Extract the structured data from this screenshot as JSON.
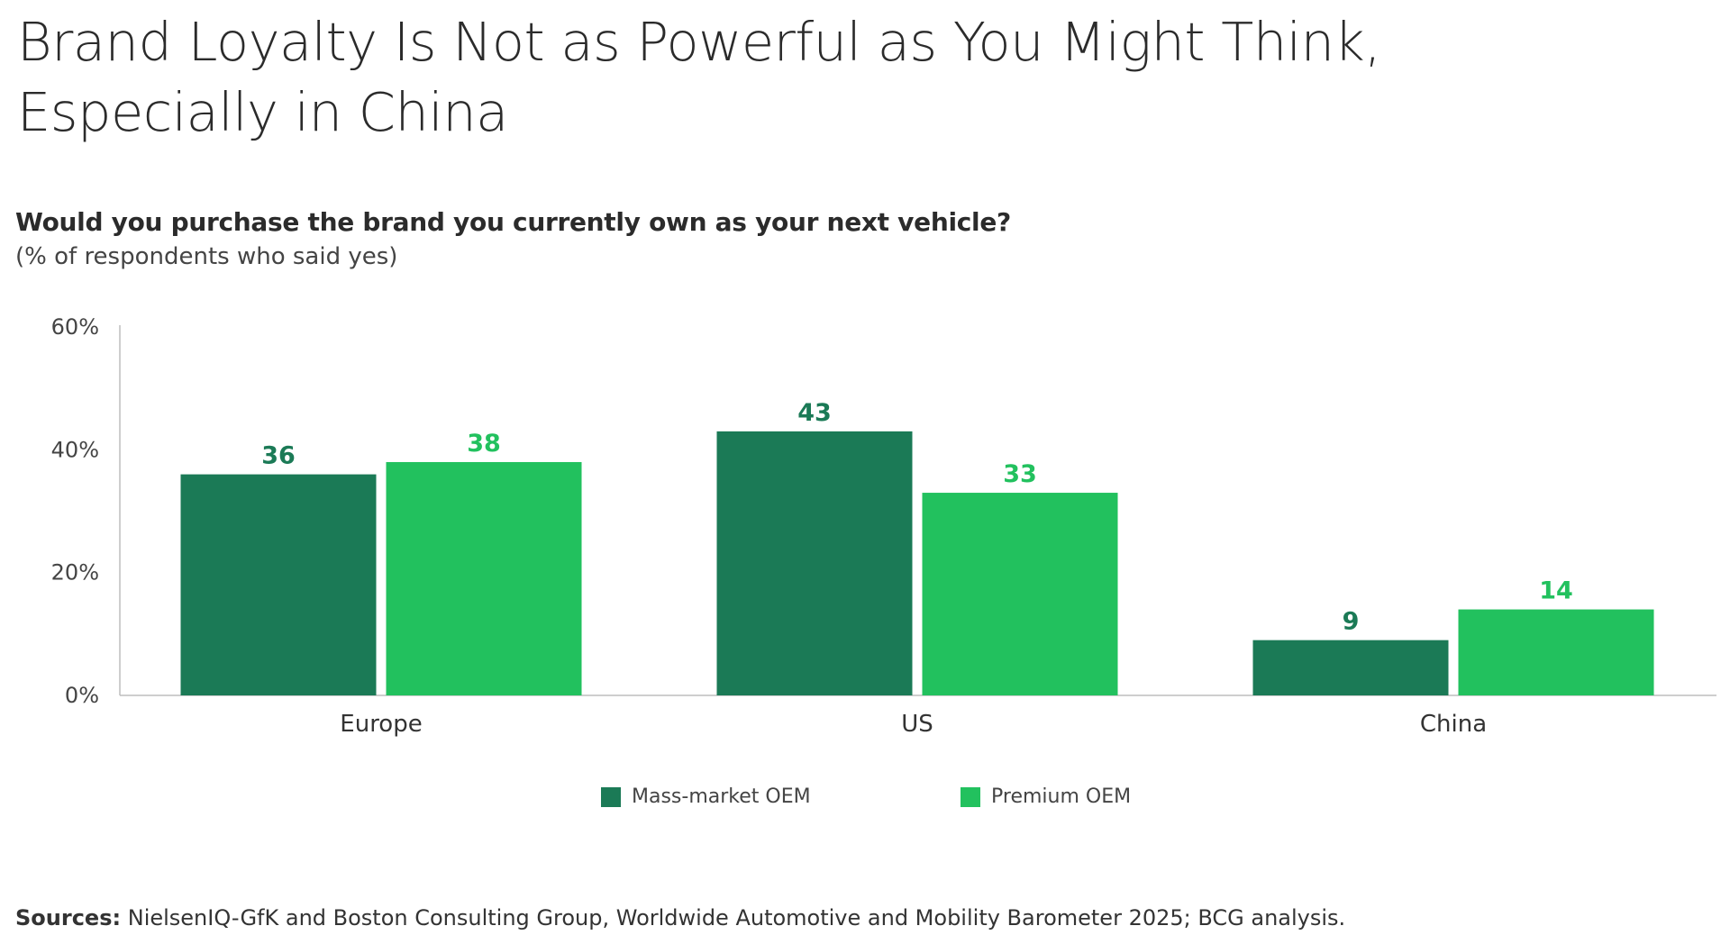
{
  "header": {
    "title_line1": "Brand Loyalty Is Not as Powerful as You Might Think,",
    "title_line2": "Especially in China"
  },
  "chart_data": {
    "type": "bar",
    "title": "Would you purchase the brand you currently own as your next vehicle?",
    "subtitle": "(% of respondents who said yes)",
    "categories": [
      "Europe",
      "US",
      "China"
    ],
    "series": [
      {
        "name": "Mass-market OEM",
        "color": "#1b7a56",
        "values": [
          36,
          43,
          9
        ]
      },
      {
        "name": "Premium OEM",
        "color": "#22c15e",
        "values": [
          38,
          33,
          14
        ]
      }
    ],
    "ylim": [
      0,
      60
    ],
    "yticks": [
      0,
      20,
      40,
      60
    ],
    "ytick_labels": [
      "0%",
      "20%",
      "40%",
      "60%"
    ],
    "xlabel": "",
    "ylabel": "",
    "grid": false,
    "legend_position": "bottom"
  },
  "footer": {
    "sources_label": "Sources:",
    "sources_text": "NielsenIQ-GfK and Boston Consulting Group, Worldwide Automotive and Mobility Barometer 2025; BCG analysis."
  }
}
